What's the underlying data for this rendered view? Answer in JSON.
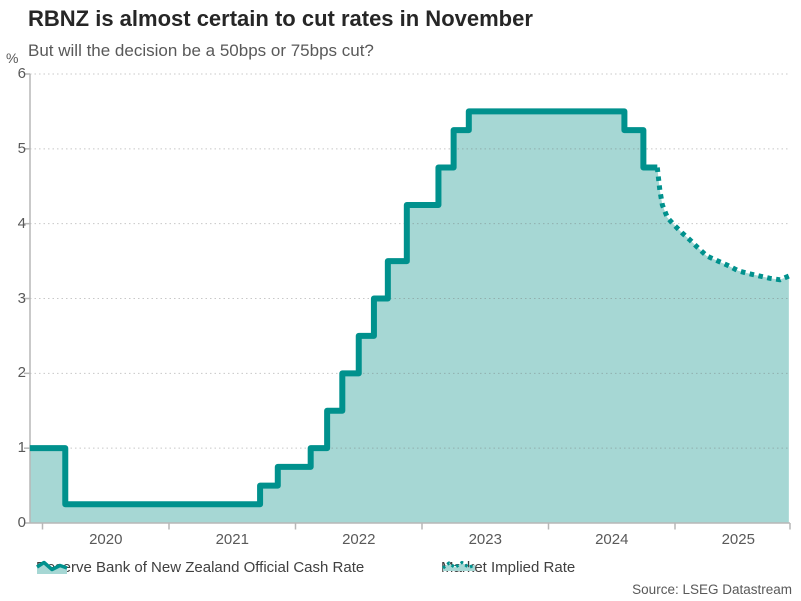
{
  "header": {
    "title": "RBNZ is almost certain to cut rates in November",
    "subtitle": "But will the decision be a 50bps or 75bps cut?"
  },
  "chart_data": {
    "type": "area",
    "subtype": "step-area with dotted forecast line",
    "unit_label": "%",
    "ylim": [
      0,
      6
    ],
    "y_ticks": [
      0,
      1,
      2,
      3,
      4,
      5,
      6
    ],
    "x_tick_years": [
      2020,
      2021,
      2022,
      2023,
      2024,
      2025
    ],
    "x_range": [
      2019.9,
      2025.9
    ],
    "grid": "dotted horizontal gridlines at each integer",
    "legend_position": "bottom",
    "colors": {
      "line": "#00918d",
      "fill": "#a6d7d4",
      "axis": "#b7b7b7",
      "gridline": "#bfbfbf"
    },
    "series": [
      {
        "name": "Reserve Bank of New Zealand Official Cash Rate",
        "style": "step-solid",
        "points": [
          [
            2019.9,
            1.0
          ],
          [
            2020.18,
            0.25
          ],
          [
            2021.72,
            0.5
          ],
          [
            2021.86,
            0.75
          ],
          [
            2022.12,
            1.0
          ],
          [
            2022.25,
            1.5
          ],
          [
            2022.37,
            2.0
          ],
          [
            2022.5,
            2.5
          ],
          [
            2022.62,
            3.0
          ],
          [
            2022.73,
            3.5
          ],
          [
            2022.88,
            4.25
          ],
          [
            2023.13,
            4.75
          ],
          [
            2023.25,
            5.25
          ],
          [
            2023.37,
            5.5
          ],
          [
            2024.6,
            5.25
          ],
          [
            2024.75,
            4.75
          ],
          [
            2024.86,
            4.75
          ]
        ]
      },
      {
        "name": "Market Implied Rate",
        "style": "dotted-line",
        "points": [
          [
            2024.86,
            4.75
          ],
          [
            2024.88,
            4.45
          ],
          [
            2024.9,
            4.25
          ],
          [
            2024.94,
            4.08
          ],
          [
            2025.0,
            3.97
          ],
          [
            2025.06,
            3.87
          ],
          [
            2025.12,
            3.78
          ],
          [
            2025.18,
            3.68
          ],
          [
            2025.25,
            3.57
          ],
          [
            2025.34,
            3.5
          ],
          [
            2025.42,
            3.44
          ],
          [
            2025.5,
            3.37
          ],
          [
            2025.59,
            3.33
          ],
          [
            2025.67,
            3.3
          ],
          [
            2025.75,
            3.27
          ],
          [
            2025.83,
            3.25
          ],
          [
            2025.9,
            3.3
          ]
        ]
      }
    ]
  },
  "legend": {
    "items": [
      {
        "icon": "area-wave-solid-icon",
        "label": "Reserve Bank of New Zealand Official Cash Rate"
      },
      {
        "icon": "area-wave-dotted-icon",
        "label": "Market Implied Rate"
      }
    ]
  },
  "footer": {
    "source": "Source: LSEG Datastream"
  }
}
